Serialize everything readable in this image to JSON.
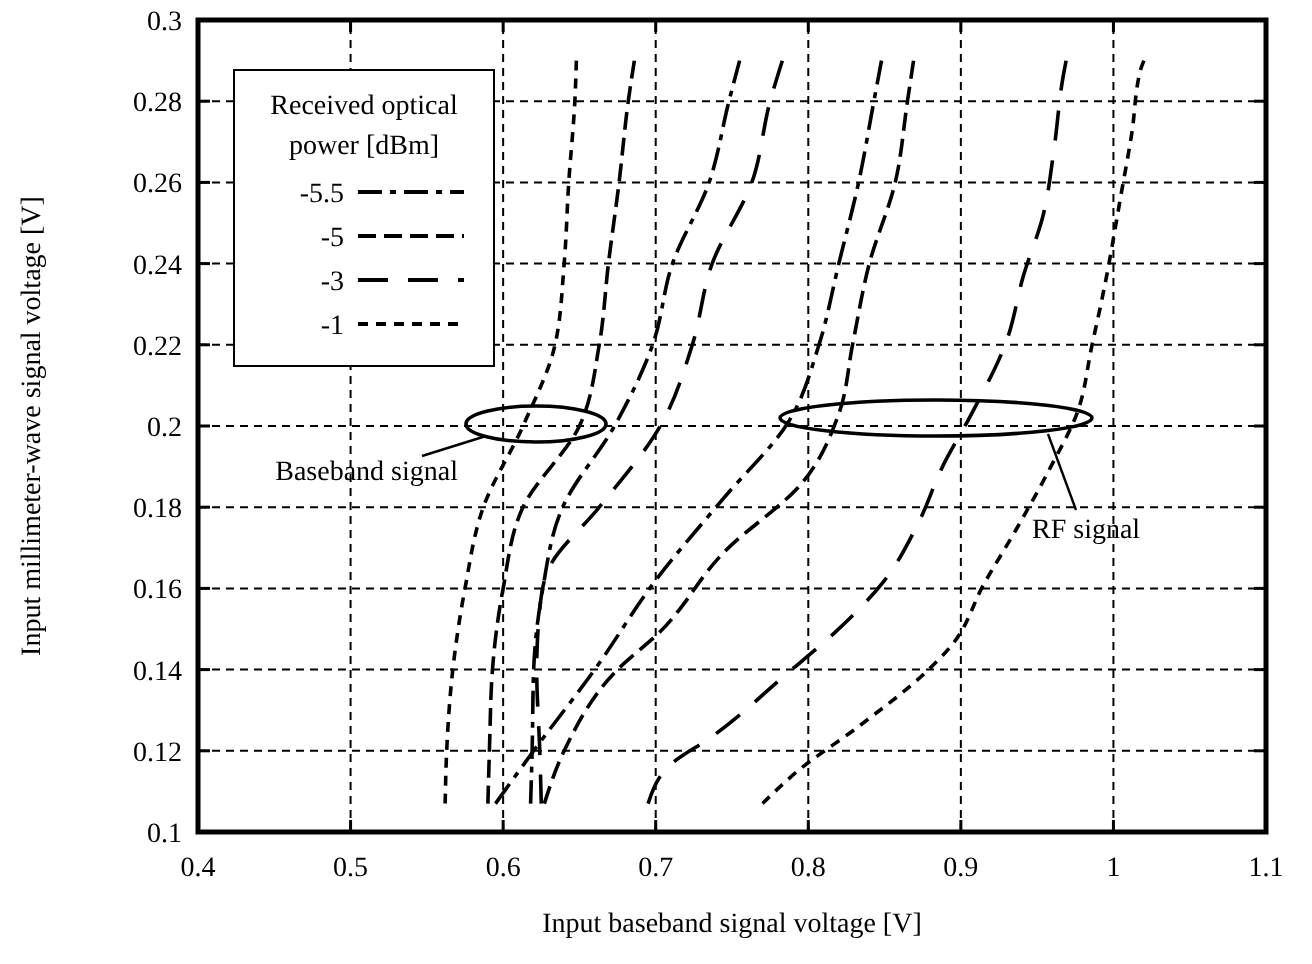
{
  "chart_data": {
    "type": "line",
    "xlabel": "Input baseband signal voltage [V]",
    "ylabel": "Input millimeter-wave signal voltage [V]",
    "legend_title": "Received optical power [dBm]",
    "legend": "top left",
    "grid": true,
    "xlim": [
      0.4,
      1.1
    ],
    "xticks": [
      0.4,
      0.5,
      0.6,
      0.7,
      0.8,
      0.9,
      1,
      1.1
    ],
    "ylim": [
      0.1,
      0.3
    ],
    "yticks": [
      0.1,
      0.12,
      0.14,
      0.16,
      0.18,
      0.2,
      0.22,
      0.24,
      0.26,
      0.28,
      0.3
    ],
    "annotations": [
      "Baseband signal",
      "RF signal"
    ],
    "series": [
      {
        "name": "-5.5",
        "color": "#000000",
        "line_style": "dashdot",
        "x": [
          0.618,
          0.619,
          0.62,
          0.626,
          0.639,
          0.673,
          0.698,
          0.711,
          0.735,
          0.748,
          0.755
        ],
        "values": [
          0.107,
          0.12,
          0.14,
          0.16,
          0.18,
          0.2,
          0.22,
          0.24,
          0.26,
          0.28,
          0.29
        ]
      },
      {
        "name": "-5",
        "color": "#000000",
        "line_style": "dashed",
        "x": [
          0.59,
          0.591,
          0.593,
          0.6,
          0.613,
          0.65,
          0.663,
          0.669,
          0.676,
          0.682,
          0.686
        ],
        "values": [
          0.107,
          0.12,
          0.14,
          0.16,
          0.18,
          0.2,
          0.22,
          0.24,
          0.26,
          0.28,
          0.29
        ]
      },
      {
        "name": "-3",
        "color": "#000000",
        "line_style": "longdash",
        "x": [
          0.625,
          0.624,
          0.622,
          0.624,
          0.63,
          0.663,
          0.703,
          0.724,
          0.737,
          0.763,
          0.775,
          0.783
        ],
        "values": [
          0.107,
          0.12,
          0.14,
          0.155,
          0.165,
          0.18,
          0.2,
          0.22,
          0.24,
          0.26,
          0.28,
          0.29
        ]
      },
      {
        "name": "-1",
        "color": "#000000",
        "line_style": "dotted",
        "x": [
          0.562,
          0.563,
          0.567,
          0.575,
          0.587,
          0.613,
          0.634,
          0.64,
          0.643,
          0.647,
          0.648
        ],
        "values": [
          0.107,
          0.12,
          0.14,
          0.16,
          0.18,
          0.2,
          0.22,
          0.24,
          0.26,
          0.28,
          0.29
        ]
      },
      {
        "color": "#000000",
        "line_style": "dashdot",
        "x": [
          0.595,
          0.62,
          0.66,
          0.7,
          0.744,
          0.787,
          0.807,
          0.82,
          0.833,
          0.843,
          0.848
        ],
        "values": [
          0.107,
          0.12,
          0.14,
          0.162,
          0.182,
          0.201,
          0.22,
          0.24,
          0.26,
          0.28,
          0.29
        ]
      },
      {
        "color": "#000000",
        "line_style": "dashed",
        "x": [
          0.627,
          0.64,
          0.675,
          0.702,
          0.745,
          0.796,
          0.82,
          0.829,
          0.84,
          0.857,
          0.865,
          0.869
        ],
        "values": [
          0.107,
          0.12,
          0.14,
          0.149,
          0.169,
          0.186,
          0.203,
          0.22,
          0.24,
          0.26,
          0.28,
          0.29
        ]
      },
      {
        "color": "#000000",
        "line_style": "longdash",
        "x": [
          0.695,
          0.711,
          0.735,
          0.786,
          0.817,
          0.85,
          0.872,
          0.888,
          0.907,
          0.93,
          0.941,
          0.954,
          0.961,
          0.967,
          0.969
        ],
        "values": [
          0.107,
          0.117,
          0.123,
          0.139,
          0.149,
          0.162,
          0.176,
          0.19,
          0.203,
          0.221,
          0.237,
          0.252,
          0.268,
          0.286,
          0.29
        ]
      },
      {
        "color": "#000000",
        "line_style": "dotted",
        "x": [
          0.77,
          0.793,
          0.833,
          0.876,
          0.894,
          0.915,
          0.937,
          0.959,
          0.976,
          0.986,
          0.994,
          1.005,
          1.012,
          1.018,
          1.02
        ],
        "values": [
          0.107,
          0.115,
          0.126,
          0.139,
          0.146,
          0.161,
          0.175,
          0.19,
          0.203,
          0.22,
          0.234,
          0.257,
          0.272,
          0.288,
          0.29
        ]
      }
    ]
  }
}
